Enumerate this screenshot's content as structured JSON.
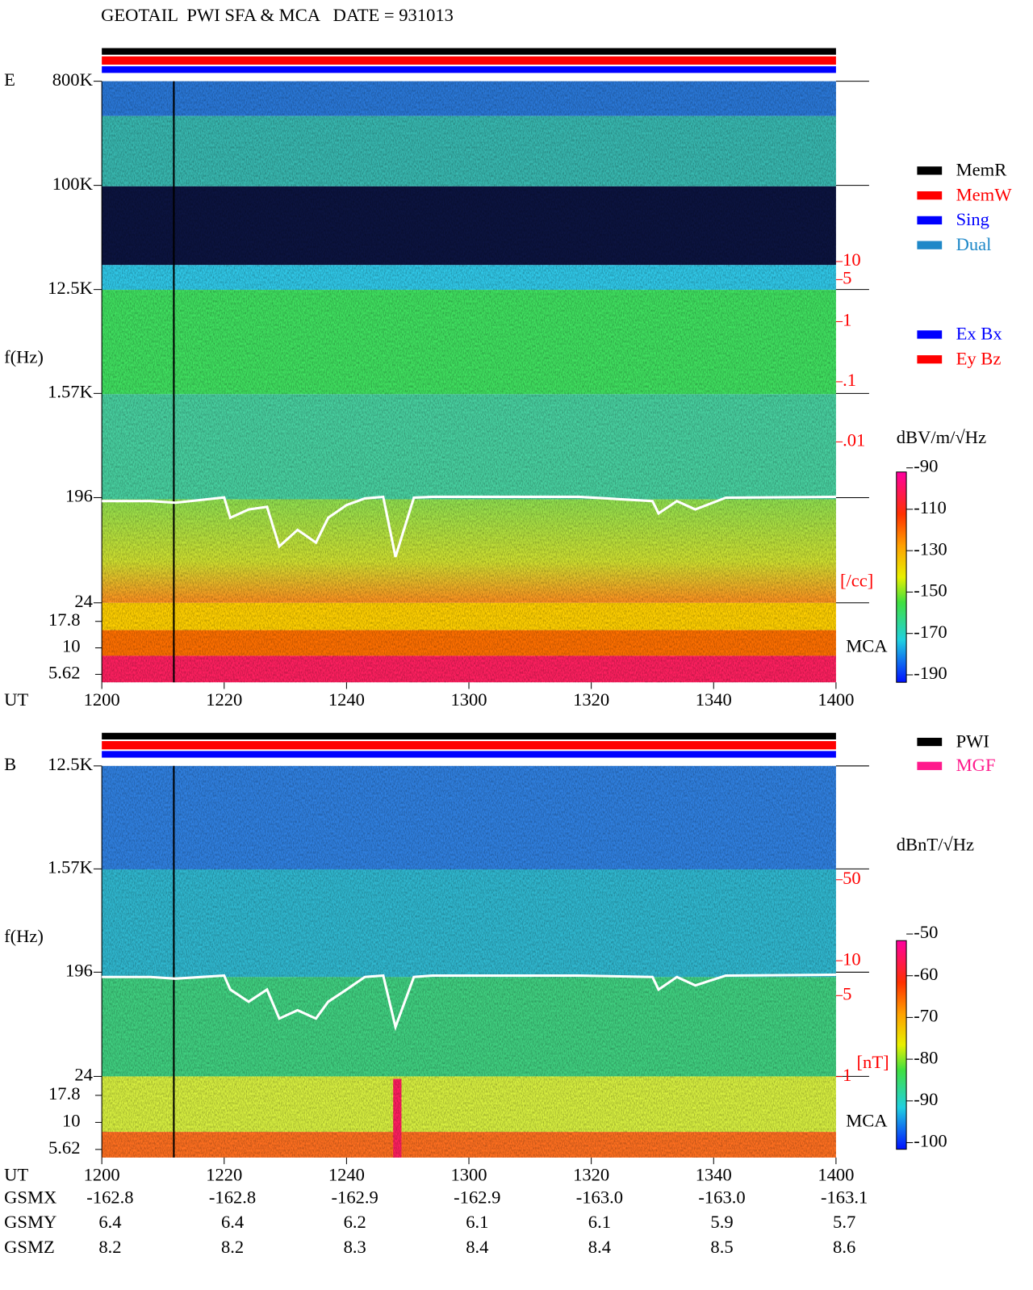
{
  "chart_data": [
    {
      "type": "spectrogram",
      "title": "GEOTAIL  PWI SFA & MCA   DATE = 931013",
      "panel_label": "E",
      "ylabel": "f(Hz)",
      "xlabel": "UT",
      "ylog": true,
      "ylim": [
        24,
        800000
      ],
      "yticks": [
        {
          "value": 800000,
          "label": "800K"
        },
        {
          "value": 100000,
          "label": "100K"
        },
        {
          "value": 12500,
          "label": "12.5K"
        },
        {
          "value": 1570,
          "label": "1.57K"
        },
        196,
        24
      ],
      "mca_label": "MCA",
      "mca_ticks": [
        17.8,
        10,
        5.62
      ],
      "xlim": [
        "1200",
        "1400"
      ],
      "xticks": [
        "1200",
        "1220",
        "1240",
        "1300",
        "1320",
        "1340",
        "1400"
      ],
      "y2label": "[/cc]",
      "y2log": true,
      "y2lim": [
        1e-06,
        10000
      ],
      "y2ticks": [
        10,
        5,
        1,
        {
          "value": 0.1,
          "label": ".1"
        },
        {
          "value": 0.01,
          "label": ".01"
        }
      ],
      "line": {
        "color": "#ffffff",
        "x": [
          "1200",
          "1208",
          "1212",
          "1220",
          "1221",
          "1224",
          "1227",
          "1229",
          "1232",
          "1235",
          "1237",
          "1240",
          "1243",
          "1246",
          "1248",
          "1251",
          "1254",
          "1304",
          "1318",
          "1330",
          "1331",
          "1334",
          "1337",
          "1342",
          "1400"
        ],
        "values": [
          183,
          183,
          177,
          197,
          131,
          155,
          163,
          74,
          103,
          80,
          131,
          169,
          193,
          199,
          60,
          196,
          199,
          199,
          199,
          183,
          143,
          183,
          155,
          196,
          199
        ]
      },
      "legend": [
        {
          "name": "MemR",
          "color": "#000000"
        },
        {
          "name": "MemW",
          "color": "#ff0000"
        },
        {
          "name": "Sing",
          "color": "#0000ff"
        },
        {
          "name": "Dual",
          "color": "#1e88c8"
        }
      ],
      "legend2": [
        {
          "name": "Ex Bx",
          "color": "#0000ff"
        },
        {
          "name": "Ey Bz",
          "color": "#ff0000"
        }
      ],
      "colorbar": {
        "label": "dBV/m/√Hz",
        "lim": [
          -190,
          -90
        ],
        "ticks": [
          -90,
          -110,
          -130,
          -150,
          -170,
          -190
        ]
      }
    },
    {
      "type": "spectrogram",
      "panel_label": "B",
      "ylabel": "f(Hz)",
      "xlabel": "UT",
      "ylog": true,
      "ylim": [
        24,
        12500
      ],
      "yticks": [
        {
          "value": 12500,
          "label": "12.5K"
        },
        {
          "value": 1570,
          "label": "1.57K"
        },
        196,
        24
      ],
      "mca_label": "MCA",
      "mca_ticks": [
        17.8,
        10,
        5.62
      ],
      "xlim": [
        "1200",
        "1400"
      ],
      "xticks": [
        "1200",
        "1220",
        "1240",
        "1300",
        "1320",
        "1340",
        "1400"
      ],
      "y2label": "[nT]",
      "y2log": true,
      "y2lim": [
        0.2,
        480
      ],
      "y2ticks": [
        50,
        10,
        5,
        1
      ],
      "line": {
        "color": "#ffffff",
        "x": [
          "1200",
          "1208",
          "1212",
          "1220",
          "1221",
          "1224",
          "1227",
          "1229",
          "1232",
          "1235",
          "1237",
          "1240",
          "1243",
          "1246",
          "1248",
          "1251",
          "1254",
          "1304",
          "1318",
          "1330",
          "1331",
          "1334",
          "1337",
          "1342",
          "1400"
        ],
        "values": [
          178,
          178,
          172,
          183,
          138,
          108,
          138,
          77,
          91,
          77,
          108,
          138,
          178,
          183,
          65,
          178,
          183,
          183,
          183,
          178,
          138,
          178,
          150,
          183,
          186
        ]
      },
      "legend": [
        {
          "name": "PWI",
          "color": "#000000"
        },
        {
          "name": "MGF",
          "color": "#ff1a8c"
        }
      ],
      "colorbar": {
        "label": "dBnT/√Hz",
        "lim": [
          -100,
          -50
        ],
        "ticks": [
          -50,
          -60,
          -70,
          -80,
          -90,
          -100
        ]
      },
      "orbit": [
        {
          "name": "GSMX",
          "values": [
            -162.8,
            -162.8,
            -162.9,
            -162.9,
            {
              "value": -163,
              "label": "-163.0"
            },
            {
              "value": -163,
              "label": "-163.0"
            },
            -163.1
          ]
        },
        {
          "name": "GSMY",
          "values": [
            6.4,
            6.4,
            6.2,
            6.1,
            6.1,
            5.9,
            5.7
          ]
        },
        {
          "name": "GSMZ",
          "values": [
            8.2,
            8.2,
            8.3,
            8.4,
            8.4,
            8.5,
            8.6
          ]
        }
      ]
    }
  ]
}
